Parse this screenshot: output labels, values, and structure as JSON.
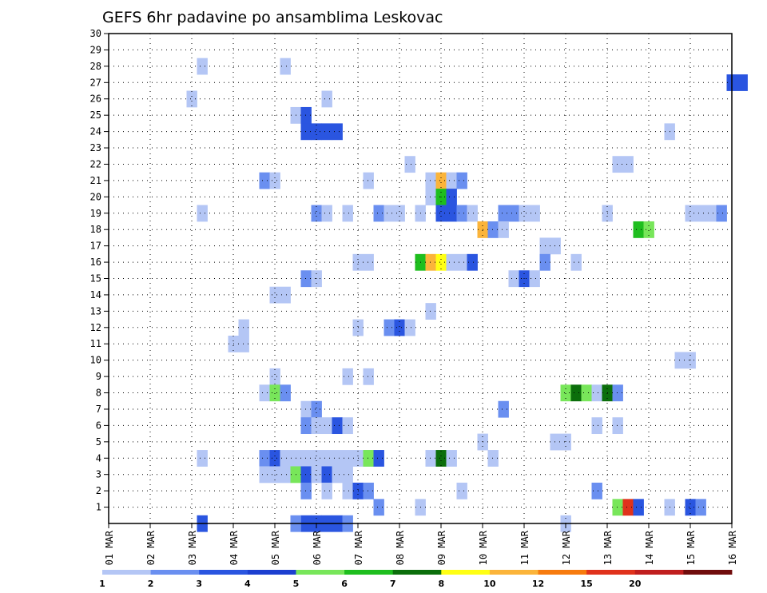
{
  "chart_data": {
    "type": "heatmap",
    "title": "GEFS 6hr padavine po ansamblima Leskovac",
    "xlabel": "",
    "ylabel": "",
    "x_tick_labels": [
      "01 MAR",
      "02 MAR",
      "03 MAR",
      "04 MAR",
      "05 MAR",
      "06 MAR",
      "07 MAR",
      "08 MAR",
      "09 MAR",
      "10 MAR",
      "11 MAR",
      "12 MAR",
      "13 MAR",
      "14 MAR",
      "15 MAR",
      "16 MAR"
    ],
    "y_tick_labels": [
      "1",
      "2",
      "3",
      "4",
      "5",
      "6",
      "7",
      "8",
      "9",
      "10",
      "11",
      "12",
      "13",
      "14",
      "15",
      "16",
      "17",
      "18",
      "19",
      "20",
      "21",
      "22",
      "23",
      "24",
      "25",
      "26",
      "27",
      "28",
      "29",
      "30"
    ],
    "x_unit": "day of March (6-hour steps)",
    "xlim": [
      1,
      16
    ],
    "ylim": [
      0,
      30
    ],
    "grid": true,
    "colorbar": {
      "position": "bottom",
      "labels": [
        "1",
        "2",
        "3",
        "4",
        "5",
        "6",
        "7",
        "8",
        "10",
        "12",
        "15",
        "20"
      ],
      "colors": [
        "#b4c6f5",
        "#6a8ff0",
        "#2a55e0",
        "#1c3fd0",
        "#78e65a",
        "#1ebe1e",
        "#0b6e0b",
        "#ffff14",
        "#fbb43a",
        "#f77b0e",
        "#e0321c",
        "#c01e1e",
        "#700c0c"
      ]
    },
    "cells": [
      [
        0,
        3.25,
        3,
        1
      ],
      [
        0,
        5.75,
        3,
        1
      ],
      [
        0,
        6.0,
        3,
        1
      ],
      [
        0,
        6.25,
        3,
        1
      ],
      [
        0,
        6.5,
        3,
        1
      ],
      [
        0,
        6.75,
        2,
        1
      ],
      [
        0,
        5.5,
        2,
        1
      ],
      [
        0,
        12.0,
        1,
        1
      ],
      [
        28,
        3.25,
        1,
        1
      ],
      [
        28,
        5.25,
        1,
        1
      ],
      [
        27,
        16.0,
        3,
        2
      ],
      [
        26,
        3.0,
        1,
        1
      ],
      [
        26,
        6.25,
        1,
        1
      ],
      [
        25,
        5.5,
        1,
        1
      ],
      [
        25,
        5.75,
        3,
        1
      ],
      [
        24,
        5.75,
        3,
        1
      ],
      [
        24,
        6.0,
        3,
        1
      ],
      [
        24,
        6.25,
        3,
        1
      ],
      [
        24,
        6.5,
        3,
        1
      ],
      [
        24,
        14.5,
        1,
        1
      ],
      [
        22,
        8.25,
        1,
        1
      ],
      [
        22,
        13.25,
        1,
        2
      ],
      [
        21,
        4.75,
        2,
        1
      ],
      [
        21,
        5.0,
        1,
        1
      ],
      [
        21,
        7.25,
        1,
        1
      ],
      [
        21,
        8.75,
        1,
        1
      ],
      [
        21,
        9.0,
        9,
        1
      ],
      [
        21,
        9.25,
        1,
        1
      ],
      [
        21,
        9.5,
        2,
        1
      ],
      [
        20,
        8.75,
        1,
        1
      ],
      [
        20,
        9.0,
        6,
        1
      ],
      [
        20,
        9.25,
        3,
        1
      ],
      [
        19,
        3.25,
        1,
        1
      ],
      [
        19,
        6.0,
        2,
        1
      ],
      [
        19,
        6.25,
        1,
        1
      ],
      [
        19,
        6.75,
        1,
        1
      ],
      [
        19,
        7.5,
        2,
        1
      ],
      [
        19,
        7.75,
        1,
        2
      ],
      [
        19,
        8.5,
        1,
        1
      ],
      [
        19,
        9.0,
        3,
        1
      ],
      [
        19,
        9.25,
        3,
        1
      ],
      [
        19,
        9.5,
        2,
        1
      ],
      [
        19,
        9.75,
        1,
        1
      ],
      [
        19,
        10.5,
        2,
        2
      ],
      [
        19,
        11.0,
        1,
        2
      ],
      [
        19,
        13.0,
        1,
        1
      ],
      [
        19,
        15.0,
        1,
        2
      ],
      [
        19,
        15.5,
        1,
        1
      ],
      [
        19,
        15.75,
        2,
        1
      ],
      [
        18,
        10.0,
        9,
        1
      ],
      [
        18,
        10.25,
        2,
        1
      ],
      [
        18,
        10.5,
        1,
        1
      ],
      [
        18,
        13.75,
        6,
        1
      ],
      [
        18,
        14.0,
        5,
        1
      ],
      [
        17,
        11.5,
        1,
        2
      ],
      [
        16,
        7.0,
        1,
        2
      ],
      [
        16,
        8.5,
        6,
        1
      ],
      [
        16,
        8.75,
        9,
        1
      ],
      [
        16,
        9.0,
        8,
        1
      ],
      [
        16,
        9.25,
        1,
        2
      ],
      [
        16,
        9.75,
        3,
        1
      ],
      [
        16,
        11.5,
        2,
        1
      ],
      [
        16,
        12.25,
        1,
        1
      ],
      [
        15,
        5.75,
        2,
        1
      ],
      [
        15,
        6.0,
        1,
        1
      ],
      [
        15,
        10.75,
        1,
        1
      ],
      [
        15,
        11.0,
        3,
        1
      ],
      [
        15,
        11.25,
        1,
        1
      ],
      [
        14,
        5.0,
        1,
        2
      ],
      [
        13,
        8.75,
        1,
        1
      ],
      [
        12,
        4.25,
        1,
        1
      ],
      [
        12,
        7.0,
        1,
        1
      ],
      [
        12,
        7.75,
        2,
        1
      ],
      [
        12,
        8.0,
        3,
        1
      ],
      [
        12,
        8.25,
        1,
        1
      ],
      [
        11,
        4.0,
        1,
        2
      ],
      [
        10,
        14.75,
        1,
        2
      ],
      [
        9,
        5.0,
        1,
        1
      ],
      [
        9,
        6.75,
        1,
        1
      ],
      [
        9,
        7.25,
        1,
        1
      ],
      [
        8,
        4.75,
        1,
        1
      ],
      [
        8,
        5.0,
        5,
        1
      ],
      [
        8,
        5.25,
        2,
        1
      ],
      [
        8,
        12.0,
        5,
        1
      ],
      [
        8,
        12.25,
        7,
        1
      ],
      [
        8,
        12.5,
        5,
        1
      ],
      [
        8,
        12.75,
        1,
        1
      ],
      [
        8,
        13.0,
        7,
        1
      ],
      [
        8,
        13.25,
        2,
        1
      ],
      [
        7,
        5.75,
        1,
        1
      ],
      [
        7,
        6.0,
        2,
        1
      ],
      [
        7,
        10.5,
        2,
        1
      ],
      [
        6,
        5.75,
        2,
        1
      ],
      [
        6,
        6.0,
        1,
        2
      ],
      [
        6,
        6.5,
        3,
        1
      ],
      [
        6,
        6.75,
        1,
        1
      ],
      [
        6,
        12.75,
        1,
        1
      ],
      [
        6,
        13.25,
        1,
        1
      ],
      [
        5,
        10.0,
        1,
        1
      ],
      [
        5,
        11.75,
        1,
        2
      ],
      [
        4,
        3.25,
        1,
        1
      ],
      [
        4,
        4.75,
        2,
        1
      ],
      [
        4,
        5.0,
        3,
        1
      ],
      [
        4,
        5.25,
        1,
        1
      ],
      [
        4,
        5.5,
        1,
        8
      ],
      [
        4,
        7.25,
        5,
        1
      ],
      [
        4,
        7.5,
        3,
        1
      ],
      [
        4,
        8.75,
        1,
        1
      ],
      [
        4,
        9.0,
        7,
        1
      ],
      [
        4,
        9.25,
        1,
        1
      ],
      [
        4,
        10.25,
        1,
        1
      ],
      [
        3,
        4.75,
        1,
        3
      ],
      [
        3,
        5.5,
        5,
        1
      ],
      [
        3,
        5.75,
        3,
        1
      ],
      [
        3,
        6.0,
        1,
        1
      ],
      [
        3,
        6.25,
        3,
        1
      ],
      [
        3,
        6.5,
        1,
        1
      ],
      [
        3,
        6.75,
        1,
        1
      ],
      [
        2,
        5.75,
        2,
        1
      ],
      [
        2,
        6.25,
        1,
        1
      ],
      [
        2,
        6.75,
        1,
        1
      ],
      [
        2,
        7.0,
        3,
        1
      ],
      [
        2,
        7.25,
        2,
        1
      ],
      [
        2,
        9.5,
        1,
        1
      ],
      [
        2,
        12.75,
        2,
        1
      ],
      [
        1,
        7.5,
        2,
        1
      ],
      [
        1,
        8.5,
        1,
        1
      ],
      [
        1,
        13.25,
        5,
        1
      ],
      [
        1,
        13.5,
        11,
        1
      ],
      [
        1,
        13.75,
        3,
        1
      ],
      [
        1,
        14.5,
        1,
        1
      ],
      [
        1,
        15.0,
        3,
        1
      ],
      [
        1,
        15.25,
        2,
        1
      ]
    ]
  }
}
